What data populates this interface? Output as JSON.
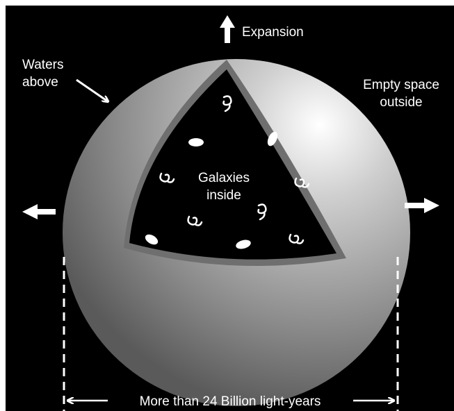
{
  "labels": {
    "expansion": "Expansion",
    "waters_above": [
      "Waters",
      "above"
    ],
    "empty_space_outside": [
      "Empty space",
      "outside"
    ],
    "galaxies_inside": [
      "Galaxies",
      "inside"
    ],
    "size": "More than 24 Billion light-years"
  }
}
